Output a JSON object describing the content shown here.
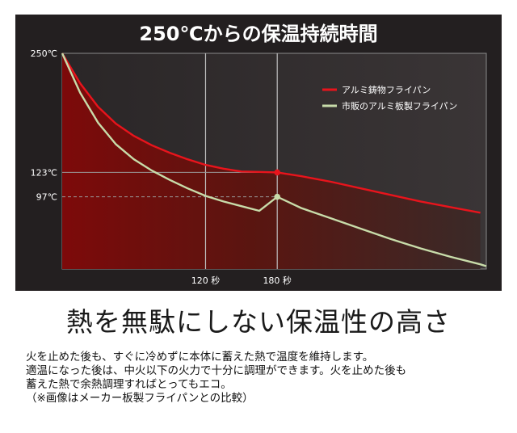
{
  "chart_data": {
    "type": "line",
    "title": "250℃からの保温持続時間",
    "x_tick_labels": [
      {
        "x": 120,
        "label": "120 秒"
      },
      {
        "x": 180,
        "label": "180 秒"
      }
    ],
    "y_tick_labels": [
      {
        "y": 250,
        "label": "250℃"
      },
      {
        "y": 123,
        "label": "123℃"
      },
      {
        "y": 97,
        "label": "97℃"
      }
    ],
    "xlim": [
      0,
      355
    ],
    "ylim": [
      20,
      250
    ],
    "legend_position": "top-right",
    "series": [
      {
        "name": "アルミ鋳物フライパン",
        "color": "#e8141c",
        "x": [
          0,
          15,
          30,
          45,
          60,
          75,
          90,
          105,
          120,
          135,
          150,
          165,
          180,
          200,
          225,
          250,
          275,
          300,
          325,
          350
        ],
        "y": [
          250,
          218,
          193,
          175,
          162,
          152,
          144,
          137,
          131,
          127,
          124,
          123.5,
          123,
          119,
          113,
          106,
          99,
          92,
          86,
          80
        ]
      },
      {
        "name": "市販のアルミ板製フライパン",
        "color": "#c8dcaa",
        "x": [
          0,
          15,
          30,
          45,
          60,
          75,
          90,
          105,
          120,
          135,
          150,
          165,
          180,
          200,
          225,
          250,
          275,
          300,
          325,
          350,
          355
        ],
        "y": [
          250,
          208,
          176,
          153,
          137,
          125,
          115,
          106,
          98,
          92,
          87,
          82,
          97,
          85,
          74,
          63,
          52,
          42,
          33,
          25,
          23
        ]
      }
    ],
    "highlight_points": [
      {
        "series": 0,
        "x": 180,
        "y": 123
      },
      {
        "series": 1,
        "x": 180,
        "y": 97
      }
    ],
    "colors": {
      "background": "#231f20",
      "fill_dark": "#7d0a0a",
      "fill_light": "#3a2a28",
      "grid": "#bfbfbf"
    }
  },
  "headline": "熱を無駄にしない保温性の高さ",
  "body_lines": [
    "火を止めた後も、すぐに冷めずに本体に蓄えた熱で温度を維持します。",
    "適温になった後は、中火以下の火力で十分に調理ができます。火を止めた後も",
    "蓄えた熱で余熱調理すればとってもエコ。",
    "（※画像はメーカー板製フライパンとの比較）"
  ]
}
